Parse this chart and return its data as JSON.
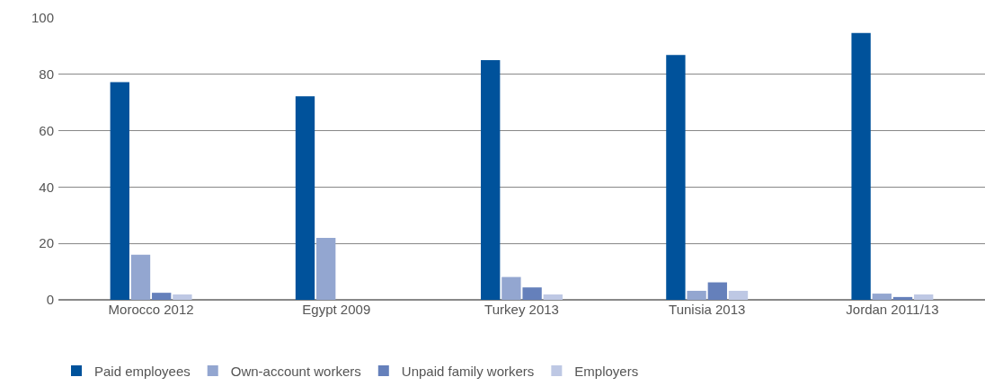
{
  "chart_data": {
    "type": "bar",
    "categories": [
      "Morocco 2012",
      "Egypt 2009",
      "Turkey 2013",
      "Tunisia 2013",
      "Jordan 2011/13"
    ],
    "series": [
      {
        "name": "Paid employees",
        "color": "#00529b",
        "values": [
          77.2,
          72.2,
          85,
          86.9,
          94.7
        ]
      },
      {
        "name": "Own-account workers",
        "color": "#93a6d0",
        "values": [
          16,
          22,
          8.1,
          3.2,
          2.2
        ]
      },
      {
        "name": "Unpaid family workers",
        "color": "#6580bb",
        "values": [
          2.5,
          null,
          4.4,
          6.2,
          1
        ]
      },
      {
        "name": "Employers",
        "color": "#bec8e4",
        "values": [
          1.9,
          null,
          1.9,
          3.2,
          1.9
        ]
      }
    ],
    "ylim": [
      0,
      100
    ],
    "yticks": [
      0,
      20,
      40,
      60,
      80,
      100
    ],
    "grid": "y",
    "legend": "bottom left"
  }
}
